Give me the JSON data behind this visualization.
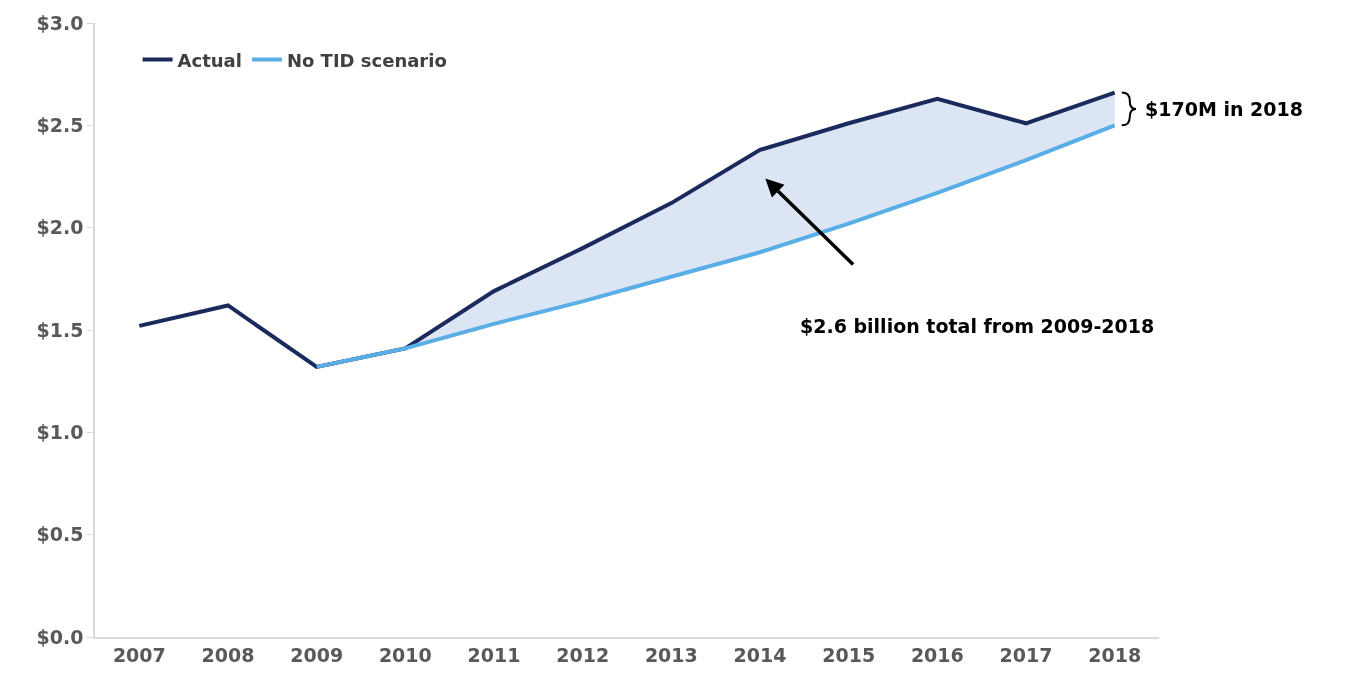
{
  "chart_data": {
    "type": "line",
    "categories": [
      "2007",
      "2008",
      "2009",
      "2010",
      "2011",
      "2012",
      "2013",
      "2014",
      "2015",
      "2016",
      "2017",
      "2018"
    ],
    "series": [
      {
        "name": "Actual",
        "color": "#1b2a5c",
        "values": [
          1.52,
          1.62,
          1.32,
          1.41,
          1.69,
          1.9,
          2.12,
          2.38,
          2.51,
          2.63,
          2.51,
          2.66
        ]
      },
      {
        "name": "No TID scenario",
        "color": "#5aaee6",
        "values": [
          null,
          null,
          1.32,
          1.41,
          1.53,
          1.64,
          1.76,
          1.88,
          2.02,
          2.17,
          2.33,
          2.5
        ],
        "lower": [
          null,
          null,
          1.32,
          1.41,
          1.53,
          1.64,
          1.76,
          1.88,
          2.02,
          2.17,
          2.33,
          2.5
        ],
        "upper": [
          null,
          null,
          1.32,
          1.41,
          1.69,
          1.9,
          2.12,
          2.38,
          2.51,
          2.63,
          2.51,
          2.66
        ]
      }
    ],
    "ylim": [
      0,
      3
    ],
    "yticks": [
      {
        "value": 0,
        "label": "$0.0"
      },
      {
        "value": 0.5,
        "label": "$0.5"
      },
      {
        "value": 1,
        "label": "$1.0"
      },
      {
        "value": 1.5,
        "label": "$1.5"
      },
      {
        "value": 2,
        "label": "$2.0"
      },
      {
        "value": 2.5,
        "label": "$2.5"
      },
      {
        "value": 3,
        "label": "$3.0"
      }
    ],
    "grid": false,
    "legend": "top left",
    "marker": "none",
    "line_style": "solid",
    "annotations": [
      "$2.6 billion total from 2009-2018",
      "$170M in 2018"
    ]
  }
}
